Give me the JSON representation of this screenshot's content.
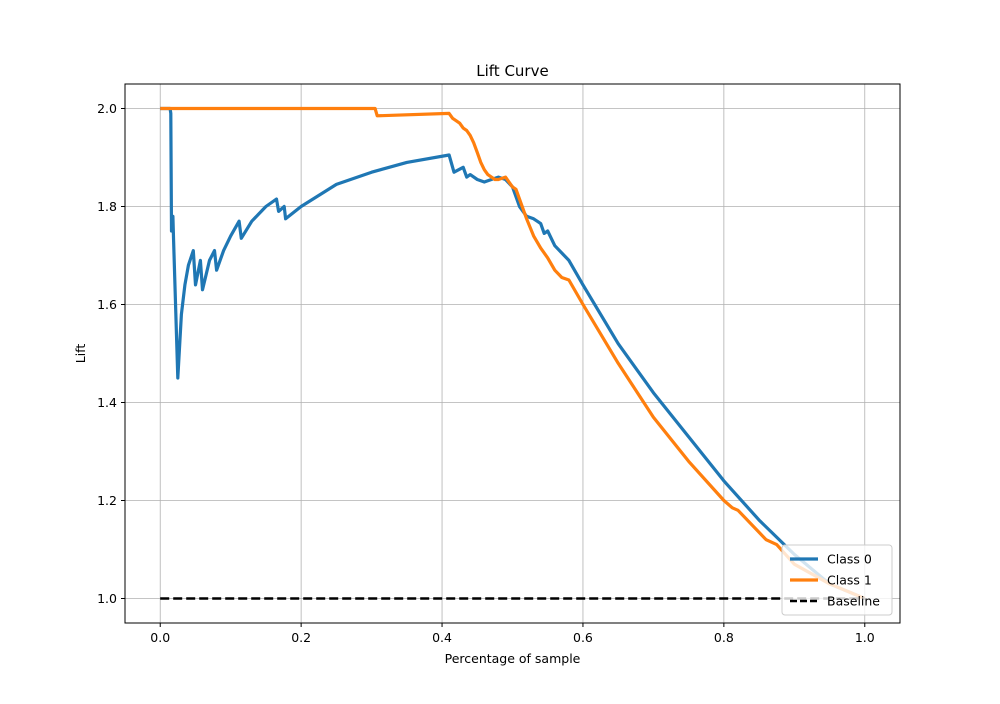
{
  "chart_data": {
    "type": "line",
    "title": "Lift Curve",
    "xlabel": "Percentage of sample",
    "ylabel": "Lift",
    "xlim": [
      -0.05,
      1.05
    ],
    "ylim": [
      0.95,
      2.05
    ],
    "xticks": [
      0.0,
      0.2,
      0.4,
      0.6,
      0.8,
      1.0
    ],
    "xtick_labels": [
      "0.0",
      "0.2",
      "0.4",
      "0.6",
      "0.8",
      "1.0"
    ],
    "yticks": [
      1.0,
      1.2,
      1.4,
      1.6,
      1.8,
      2.0
    ],
    "ytick_labels": [
      "1.0",
      "1.2",
      "1.4",
      "1.6",
      "1.8",
      "2.0"
    ],
    "grid": true,
    "legend_position": "bottom-right",
    "series": [
      {
        "name": "Class 0",
        "color": "#1f77b4",
        "style": "solid",
        "x": [
          0.0,
          0.014,
          0.015,
          0.016,
          0.018,
          0.019,
          0.025,
          0.03,
          0.035,
          0.04,
          0.047,
          0.05,
          0.057,
          0.06,
          0.065,
          0.07,
          0.077,
          0.08,
          0.09,
          0.1,
          0.112,
          0.115,
          0.13,
          0.15,
          0.165,
          0.168,
          0.176,
          0.178,
          0.2,
          0.25,
          0.3,
          0.35,
          0.41,
          0.417,
          0.43,
          0.435,
          0.44,
          0.45,
          0.46,
          0.47,
          0.48,
          0.49,
          0.5,
          0.51,
          0.52,
          0.53,
          0.535,
          0.54,
          0.545,
          0.55,
          0.56,
          0.57,
          0.58,
          0.6,
          0.65,
          0.7,
          0.75,
          0.8,
          0.85,
          0.9,
          0.95,
          1.0
        ],
        "y": [
          2.0,
          2.0,
          1.99,
          1.75,
          1.78,
          1.73,
          1.45,
          1.58,
          1.64,
          1.68,
          1.71,
          1.64,
          1.69,
          1.63,
          1.66,
          1.69,
          1.71,
          1.67,
          1.71,
          1.74,
          1.77,
          1.735,
          1.77,
          1.8,
          1.815,
          1.79,
          1.8,
          1.775,
          1.8,
          1.845,
          1.87,
          1.89,
          1.905,
          1.87,
          1.88,
          1.86,
          1.865,
          1.855,
          1.85,
          1.855,
          1.86,
          1.855,
          1.84,
          1.8,
          1.78,
          1.775,
          1.77,
          1.765,
          1.745,
          1.75,
          1.72,
          1.705,
          1.69,
          1.64,
          1.52,
          1.42,
          1.33,
          1.24,
          1.16,
          1.09,
          1.03,
          1.0
        ]
      },
      {
        "name": "Class 1",
        "color": "#ff7f0e",
        "style": "solid",
        "x": [
          0.0,
          0.3,
          0.305,
          0.308,
          0.41,
          0.415,
          0.42,
          0.425,
          0.43,
          0.435,
          0.44,
          0.445,
          0.45,
          0.455,
          0.46,
          0.465,
          0.47,
          0.475,
          0.48,
          0.49,
          0.5,
          0.505,
          0.51,
          0.52,
          0.53,
          0.54,
          0.55,
          0.56,
          0.57,
          0.58,
          0.6,
          0.65,
          0.7,
          0.75,
          0.8,
          0.812,
          0.82,
          0.86,
          0.875,
          0.9,
          0.95,
          1.0
        ],
        "y": [
          2.0,
          2.0,
          2.0,
          1.985,
          1.99,
          1.98,
          1.975,
          1.97,
          1.96,
          1.955,
          1.945,
          1.93,
          1.91,
          1.89,
          1.875,
          1.865,
          1.86,
          1.855,
          1.855,
          1.86,
          1.84,
          1.835,
          1.815,
          1.775,
          1.74,
          1.715,
          1.695,
          1.67,
          1.655,
          1.65,
          1.6,
          1.48,
          1.37,
          1.28,
          1.2,
          1.185,
          1.18,
          1.12,
          1.11,
          1.07,
          1.03,
          1.0
        ]
      },
      {
        "name": "Baseline",
        "color": "#000000",
        "style": "dashed",
        "x": [
          0.0,
          1.0
        ],
        "y": [
          1.0,
          1.0
        ]
      }
    ]
  }
}
